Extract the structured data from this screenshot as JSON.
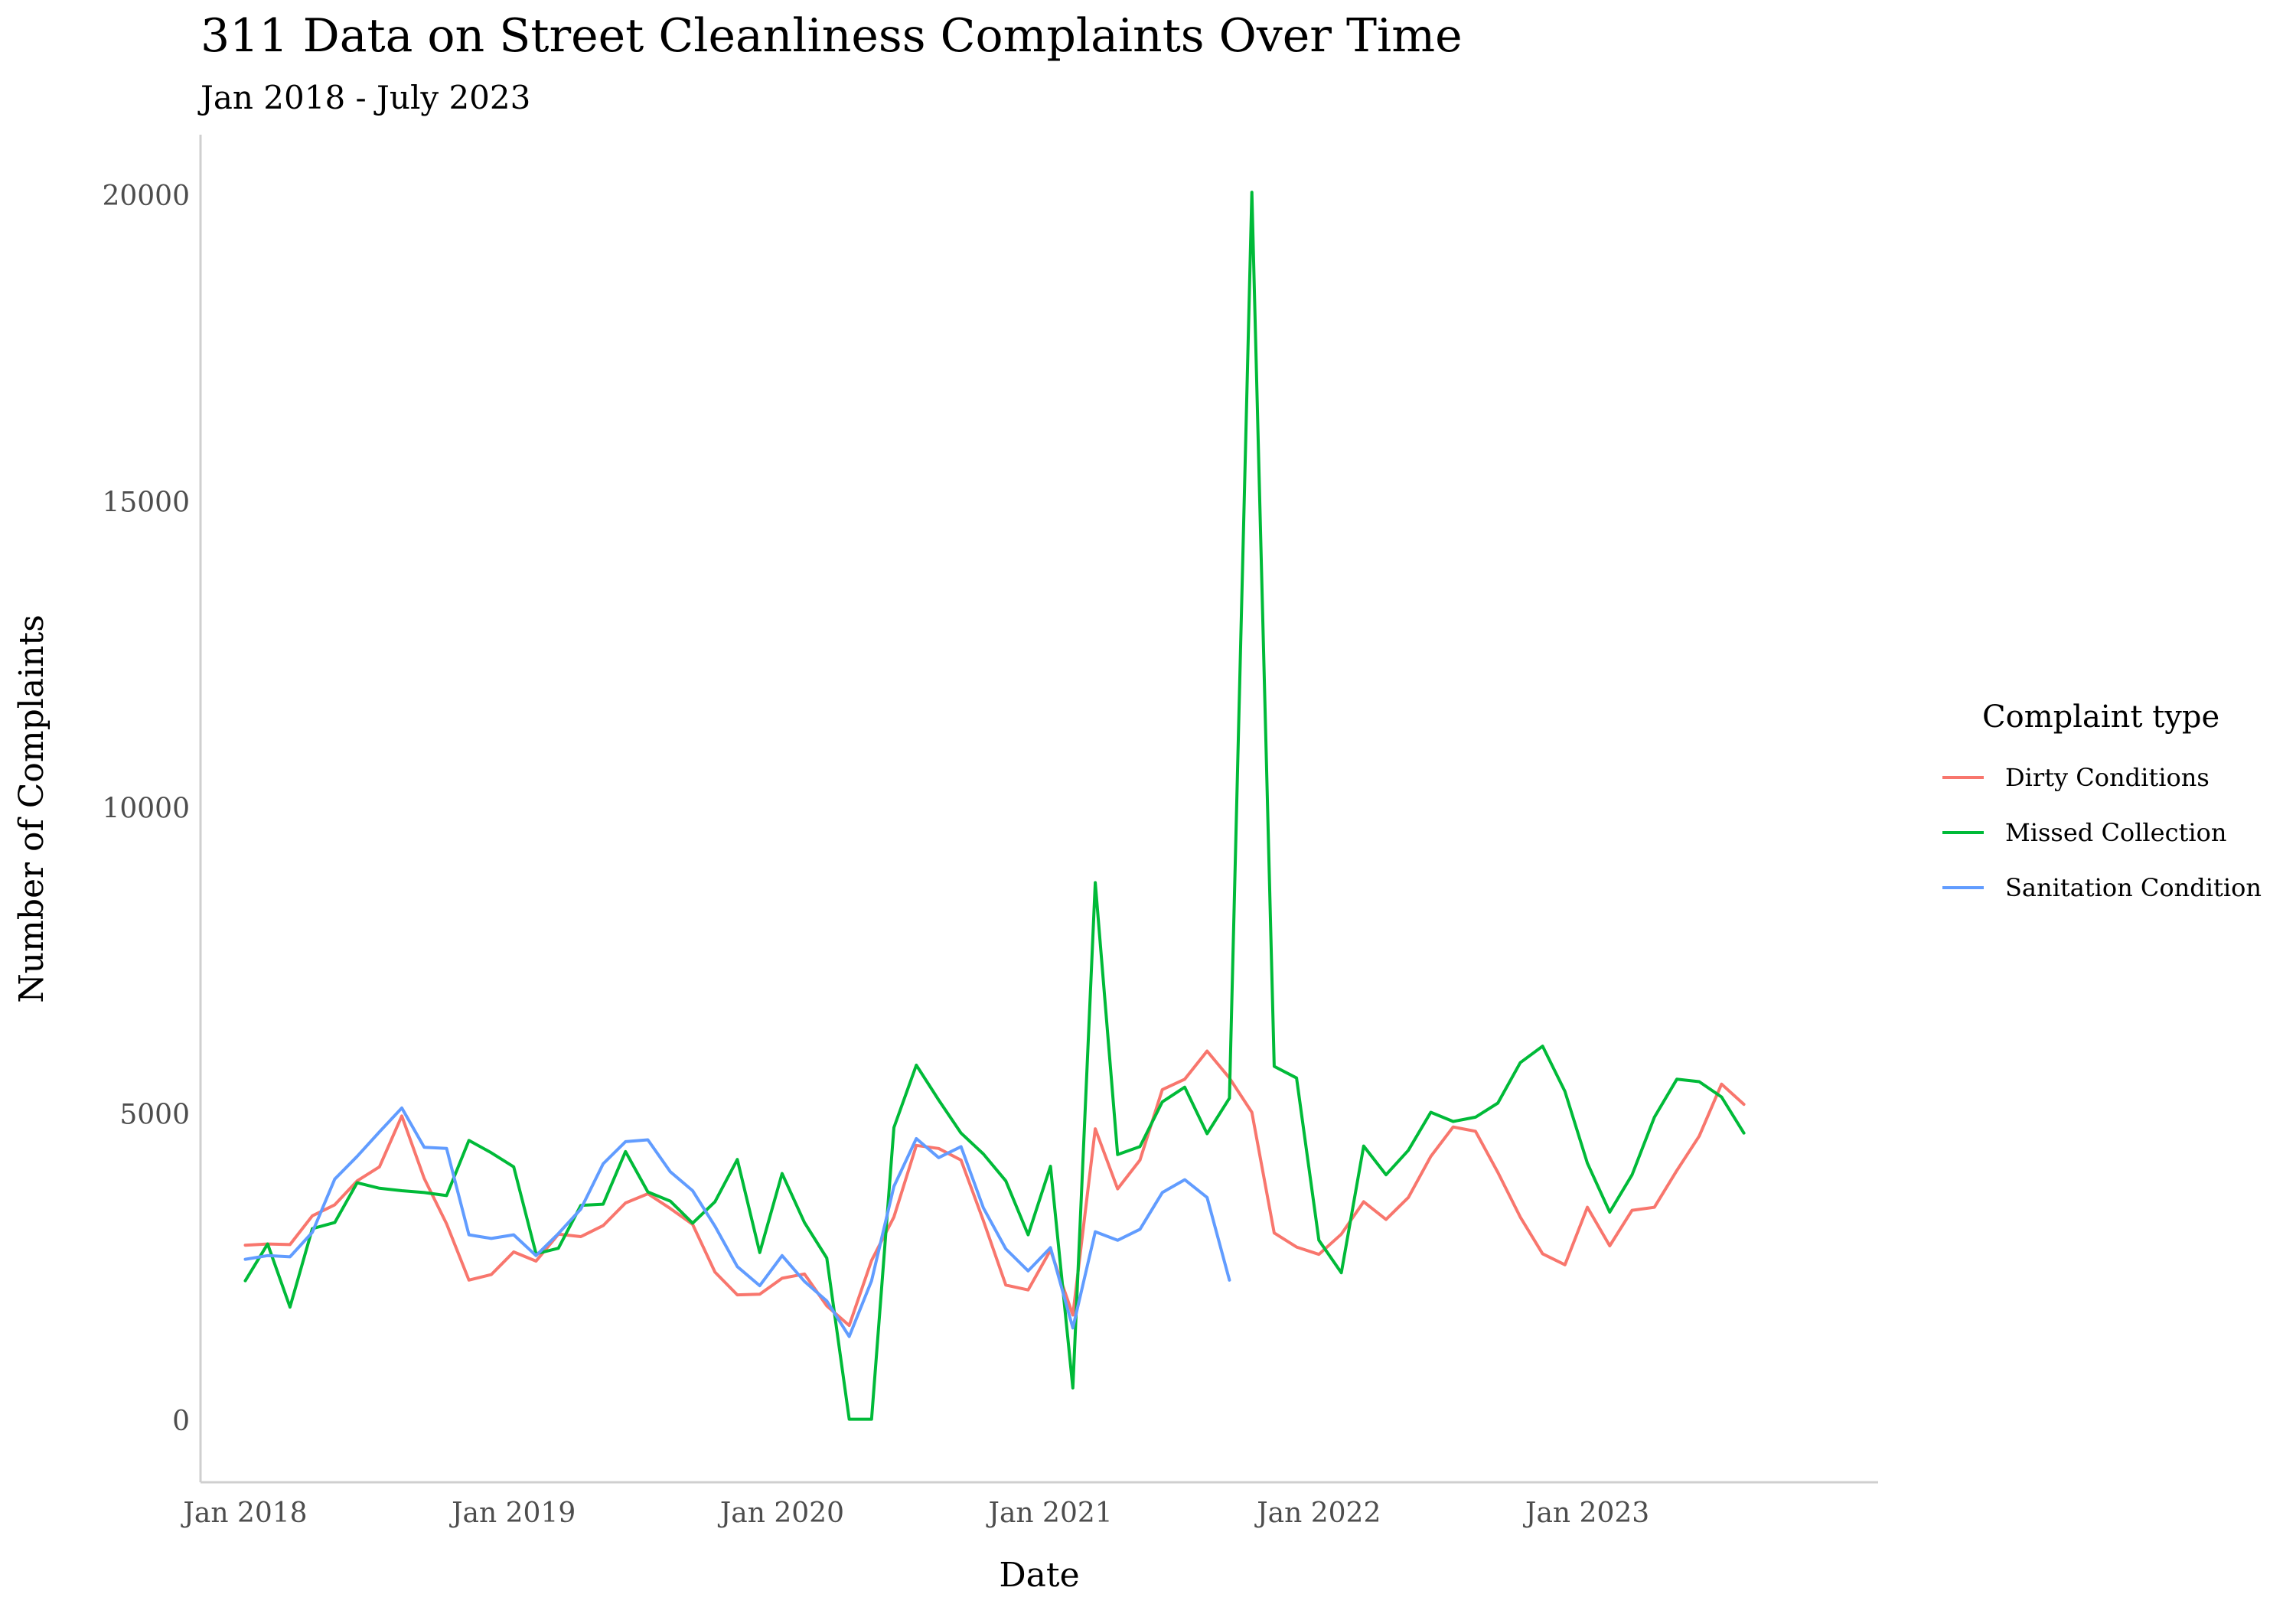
{
  "chart_data": {
    "type": "line",
    "title": "311 Data on Street Cleanliness Complaints Over Time",
    "subtitle": "Jan 2018 - July 2023",
    "xlabel": "Date",
    "ylabel": "Number of Complaints",
    "x_start": "2018-01",
    "x_ticks": [
      "Jan 2018",
      "Jan 2019",
      "Jan 2020",
      "Jan 2021",
      "Jan 2022",
      "Jan 2023"
    ],
    "x_tick_values": [
      "2018-01",
      "2019-01",
      "2020-01",
      "2021-01",
      "2022-01",
      "2023-01"
    ],
    "xlim": [
      "2017-11",
      "2024-02"
    ],
    "y_ticks": [
      "0",
      "5000",
      "10000",
      "15000",
      "20000"
    ],
    "y_tick_values": [
      0,
      5000,
      10000,
      15000,
      20000
    ],
    "ylim": [
      -1000,
      21000
    ],
    "grid": false,
    "legend": {
      "title": "Complaint type",
      "position": "right"
    },
    "series": [
      {
        "name": "Dirty Conditions",
        "color": "#F8766D",
        "values": [
          2870,
          2890,
          2880,
          3350,
          3530,
          3920,
          4150,
          4980,
          3960,
          3220,
          2300,
          2390,
          2760,
          2610,
          3050,
          3010,
          3190,
          3560,
          3710,
          3470,
          3210,
          2430,
          2060,
          2070,
          2330,
          2400,
          1880,
          1560,
          2620,
          3330,
          4500,
          4450,
          4260,
          3270,
          2220,
          2140,
          2790,
          1730,
          4770,
          3790,
          4260,
          5410,
          5580,
          6040,
          5600,
          5040,
          3070,
          2840,
          2720,
          3050,
          3580,
          3290,
          3650,
          4320,
          4800,
          4730,
          4060,
          3330,
          2730,
          2550,
          3490,
          2860,
          3440,
          3490,
          4090,
          4650,
          5500,
          5170
        ]
      },
      {
        "name": "Missed Collection",
        "color": "#00BA38",
        "values": [
          2290,
          2890,
          1860,
          3140,
          3240,
          3890,
          3800,
          3760,
          3730,
          3680,
          4580,
          4380,
          4150,
          2730,
          2820,
          3520,
          3540,
          4400,
          3740,
          3590,
          3230,
          3580,
          4270,
          2750,
          4040,
          3240,
          2660,
          30,
          30,
          4790,
          5810,
          5240,
          4700,
          4360,
          3920,
          3040,
          4160,
          540,
          8790,
          4350,
          4480,
          5210,
          5450,
          4690,
          5270,
          20060,
          5790,
          5600,
          2950,
          2420,
          4490,
          4020,
          4420,
          5040,
          4890,
          4960,
          5190,
          5850,
          6120,
          5380,
          4210,
          3410,
          4020,
          4960,
          5580,
          5540,
          5290,
          4700
        ]
      },
      {
        "name": "Sanitation Condition",
        "color": "#619CFF",
        "values": [
          2640,
          2700,
          2680,
          3080,
          3950,
          4320,
          4720,
          5110,
          4470,
          4450,
          3040,
          2980,
          3040,
          2700,
          3060,
          3460,
          4200,
          4560,
          4590,
          4070,
          3760,
          3180,
          2520,
          2210,
          2700,
          2280,
          1960,
          1380,
          2290,
          3830,
          4610,
          4300,
          4480,
          3480,
          2810,
          2450,
          2830,
          1520,
          3090,
          2950,
          3130,
          3730,
          3940,
          3650,
          2300
        ]
      }
    ]
  }
}
